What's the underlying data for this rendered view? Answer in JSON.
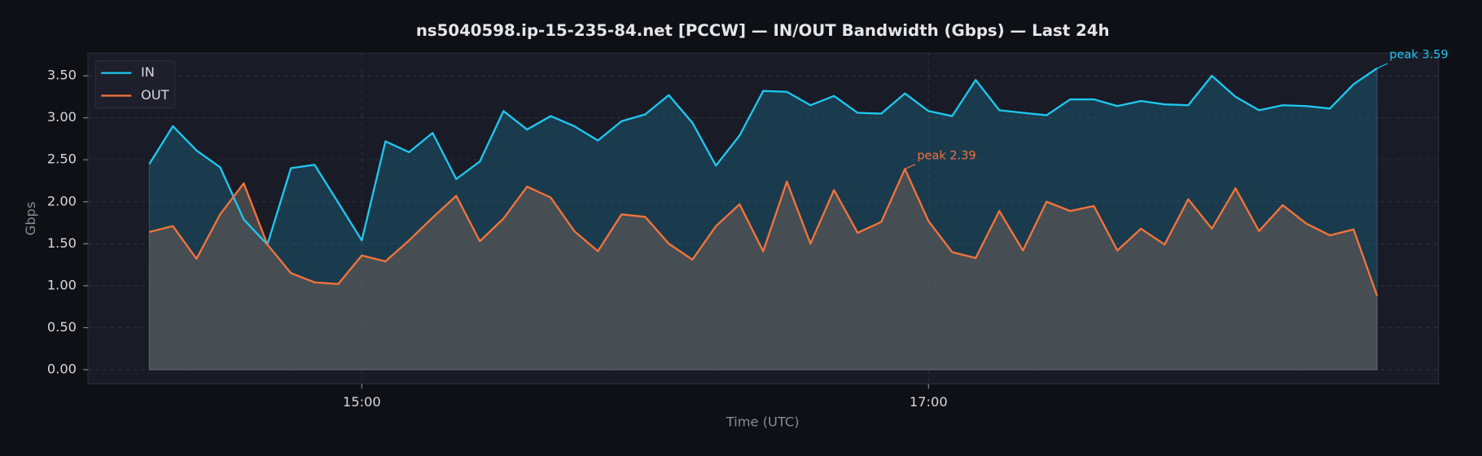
{
  "chart_data": {
    "type": "line",
    "title": "ns5040598.ip-15-235-84.net [PCCW] — IN/OUT Bandwidth (Gbps) — Last 24h",
    "xlabel": "Time (UTC)",
    "ylabel": "Gbps",
    "x": [
      "14:15",
      "14:20",
      "14:25",
      "14:30",
      "14:35",
      "14:40",
      "14:45",
      "14:50",
      "14:55",
      "15:00",
      "15:05",
      "15:10",
      "15:15",
      "15:20",
      "15:25",
      "15:30",
      "15:35",
      "15:40",
      "15:45",
      "15:50",
      "15:55",
      "16:00",
      "16:05",
      "16:10",
      "16:15",
      "16:20",
      "16:25",
      "16:30",
      "16:35",
      "16:40",
      "16:45",
      "16:50",
      "16:55",
      "17:00",
      "17:05",
      "17:10",
      "17:15",
      "17:20",
      "17:25",
      "17:30",
      "17:35",
      "17:40",
      "17:45",
      "17:50",
      "17:55",
      "18:00",
      "18:05",
      "18:10",
      "18:15",
      "18:20",
      "18:25",
      "18:30",
      "18:35"
    ],
    "series": [
      {
        "name": "IN",
        "color": "#1ec8f0",
        "fill": "rgba(30,120,150,0.35)",
        "annotation": "peak 3.59",
        "values": [
          2.45,
          2.9,
          2.61,
          2.41,
          1.79,
          1.49,
          2.4,
          2.44,
          1.99,
          1.54,
          2.72,
          2.59,
          2.82,
          2.27,
          2.48,
          3.08,
          2.86,
          3.02,
          2.9,
          2.73,
          2.96,
          3.04,
          3.27,
          2.94,
          2.43,
          2.79,
          3.32,
          3.31,
          3.15,
          3.26,
          3.06,
          3.05,
          3.29,
          3.08,
          3.02,
          3.45,
          3.09,
          3.06,
          3.03,
          3.22,
          3.22,
          3.14,
          3.2,
          3.16,
          3.15,
          3.5,
          3.25,
          3.09,
          3.15,
          3.14,
          3.11,
          3.4,
          3.59
        ]
      },
      {
        "name": "OUT",
        "color": "#f5733a",
        "fill": "rgba(85,85,85,0.75)",
        "annotation": "peak 2.39",
        "values": [
          1.64,
          1.71,
          1.32,
          1.85,
          2.22,
          1.49,
          1.15,
          1.04,
          1.02,
          1.36,
          1.29,
          1.54,
          1.81,
          2.07,
          1.53,
          1.8,
          2.18,
          2.05,
          1.65,
          1.41,
          1.85,
          1.82,
          1.5,
          1.31,
          1.71,
          1.97,
          1.41,
          2.24,
          1.5,
          2.14,
          1.63,
          1.76,
          2.39,
          1.77,
          1.4,
          1.33,
          1.89,
          1.42,
          2.0,
          1.89,
          1.95,
          1.42,
          1.68,
          1.49,
          2.03,
          1.68,
          2.16,
          1.65,
          1.96,
          1.74,
          1.6,
          1.67,
          0.88
        ]
      }
    ],
    "xlim": [
      "14:02",
      "18:48"
    ],
    "xticks": [
      "15:00",
      "17:00"
    ],
    "ylim": [
      -0.17,
      3.77
    ],
    "yticks": [
      {
        "value": 0,
        "label": "0.00"
      },
      {
        "value": 0.5,
        "label": "0.50"
      },
      {
        "value": 1,
        "label": "1.00"
      },
      {
        "value": 1.5,
        "label": "1.50"
      },
      {
        "value": 2,
        "label": "2.00"
      },
      {
        "value": 2.5,
        "label": "2.50"
      },
      {
        "value": 3,
        "label": "3.00"
      },
      {
        "value": 3.5,
        "label": "3.50"
      }
    ],
    "grid": true,
    "legend": "upper-left"
  }
}
